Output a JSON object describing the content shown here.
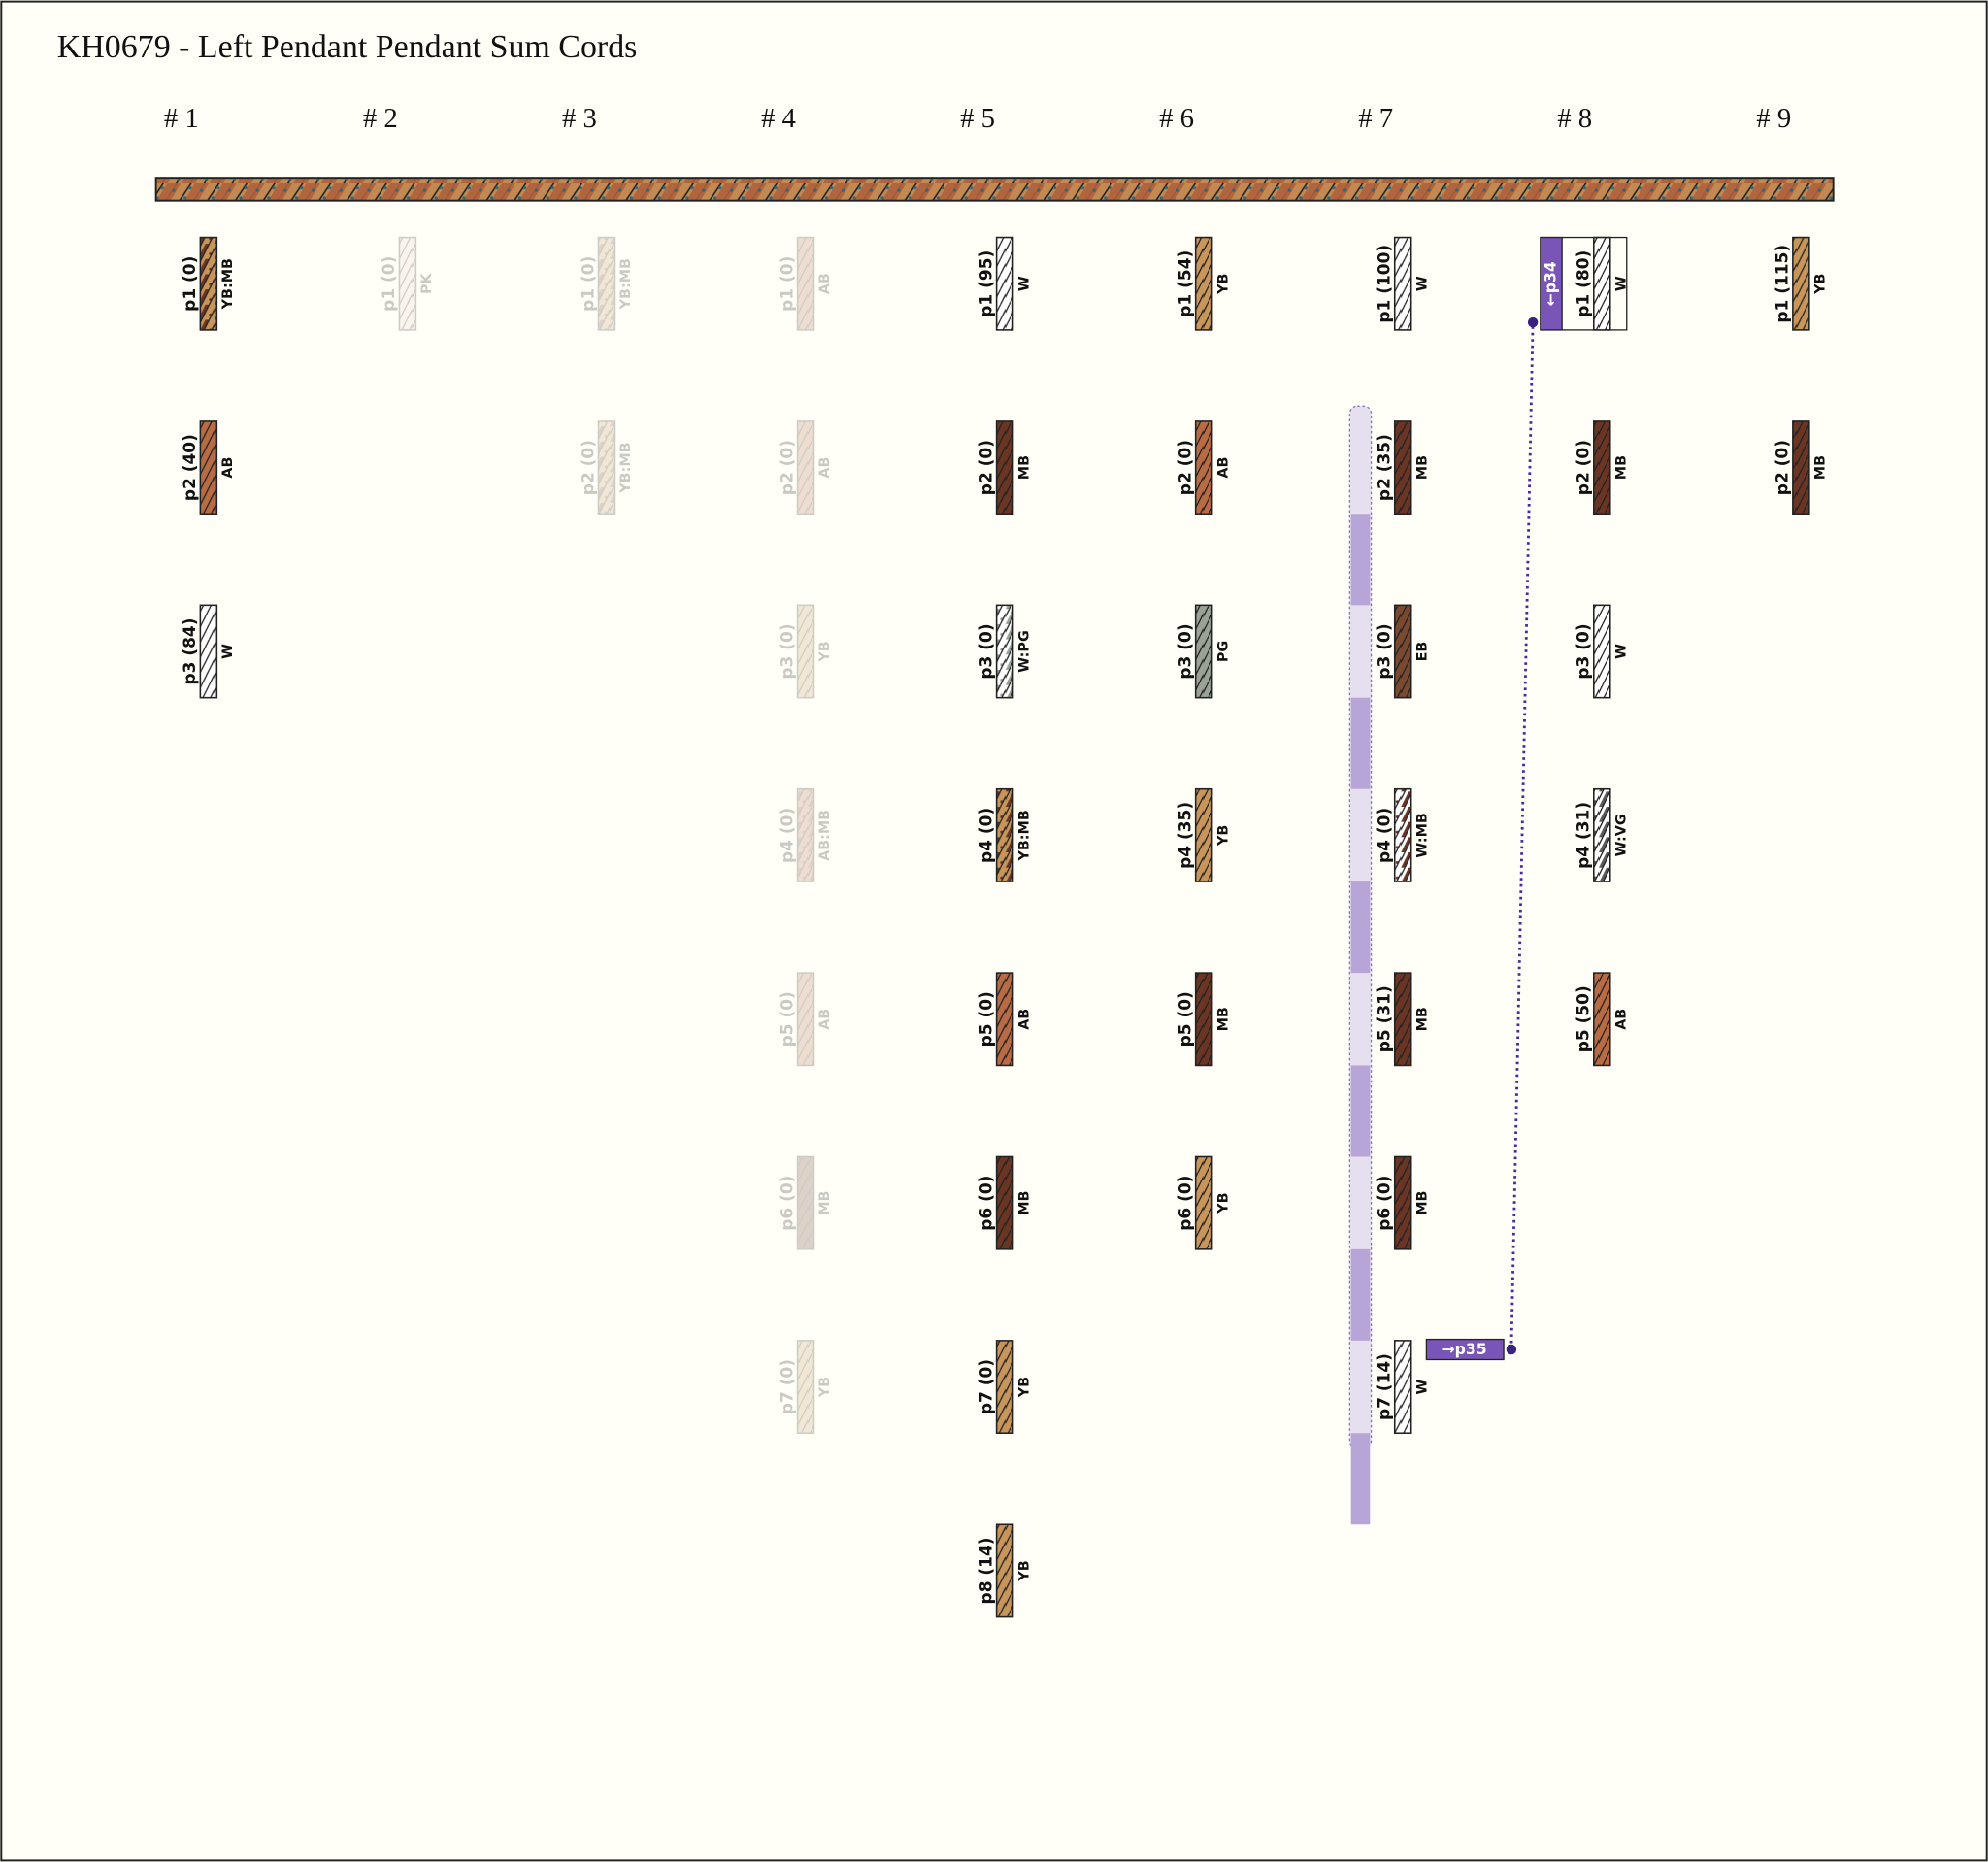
{
  "title": "KH0679 - Left Pendant Pendant Sum Cords",
  "palette": {
    "YB": "#c8955a",
    "MB": "#6b3524",
    "AB": "#b96b44",
    "W": "#ffffff",
    "PG": "#9aa296",
    "EB": "#7a4a30",
    "PK": "#f2cfc4",
    "VG": "#5a5a5a"
  },
  "groups": [
    {
      "label": "# 1",
      "cords": [
        {
          "label": "p1 (0)",
          "color": "YB:MB",
          "faded": false
        },
        {
          "label": "p2 (40)",
          "color": "AB",
          "faded": false
        },
        {
          "label": "p3 (84)",
          "color": "W",
          "faded": false
        }
      ]
    },
    {
      "label": "# 2",
      "cords": [
        {
          "label": "p1 (0)",
          "color": "PK",
          "faded": true
        }
      ]
    },
    {
      "label": "# 3",
      "cords": [
        {
          "label": "p1 (0)",
          "color": "YB:MB",
          "faded": true
        },
        {
          "label": "p2 (0)",
          "color": "YB:MB",
          "faded": true
        }
      ]
    },
    {
      "label": "# 4",
      "cords": [
        {
          "label": "p1 (0)",
          "color": "AB",
          "faded": true
        },
        {
          "label": "p2 (0)",
          "color": "AB",
          "faded": true
        },
        {
          "label": "p3 (0)",
          "color": "YB",
          "faded": true
        },
        {
          "label": "p4 (0)",
          "color": "AB:MB",
          "faded": true
        },
        {
          "label": "p5 (0)",
          "color": "AB",
          "faded": true
        },
        {
          "label": "p6 (0)",
          "color": "MB",
          "faded": true
        },
        {
          "label": "p7 (0)",
          "color": "YB",
          "faded": true
        }
      ]
    },
    {
      "label": "# 5",
      "cords": [
        {
          "label": "p1 (95)",
          "color": "W",
          "faded": false
        },
        {
          "label": "p2 (0)",
          "color": "MB",
          "faded": false
        },
        {
          "label": "p3 (0)",
          "color": "W:PG",
          "faded": false
        },
        {
          "label": "p4 (0)",
          "color": "YB:MB",
          "faded": false
        },
        {
          "label": "p5 (0)",
          "color": "AB",
          "faded": false
        },
        {
          "label": "p6 (0)",
          "color": "MB",
          "faded": false
        },
        {
          "label": "p7 (0)",
          "color": "YB",
          "faded": false
        },
        {
          "label": "p8 (14)",
          "color": "YB",
          "faded": false
        }
      ]
    },
    {
      "label": "# 6",
      "cords": [
        {
          "label": "p1 (54)",
          "color": "YB",
          "faded": false
        },
        {
          "label": "p2 (0)",
          "color": "AB",
          "faded": false
        },
        {
          "label": "p3 (0)",
          "color": "PG",
          "faded": false
        },
        {
          "label": "p4 (35)",
          "color": "YB",
          "faded": false
        },
        {
          "label": "p5 (0)",
          "color": "MB",
          "faded": false
        },
        {
          "label": "p6 (0)",
          "color": "YB",
          "faded": false
        }
      ]
    },
    {
      "label": "# 7",
      "sum_bracket": true,
      "cords": [
        {
          "label": "p1 (100)",
          "color": "W",
          "faded": false
        },
        {
          "label": "p2 (35)",
          "color": "MB",
          "faded": false
        },
        {
          "label": "p3 (0)",
          "color": "EB",
          "faded": false
        },
        {
          "label": "p4 (0)",
          "color": "W:MB",
          "faded": false
        },
        {
          "label": "p5 (31)",
          "color": "MB",
          "faded": false
        },
        {
          "label": "p6 (0)",
          "color": "MB",
          "faded": false
        },
        {
          "label": "p7 (14)",
          "color": "W",
          "faded": false,
          "tag": "→p35"
        }
      ]
    },
    {
      "label": "# 8",
      "cords": [
        {
          "label": "p1 (80)",
          "color": "W",
          "faded": false,
          "tag": "←p34"
        },
        {
          "label": "p2 (0)",
          "color": "MB",
          "faded": false
        },
        {
          "label": "p3 (0)",
          "color": "W",
          "faded": false
        },
        {
          "label": "p4 (31)",
          "color": "W:VG",
          "faded": false
        },
        {
          "label": "p5 (50)",
          "color": "AB",
          "faded": false
        }
      ]
    },
    {
      "label": "# 9",
      "cords": [
        {
          "label": "p1 (115)",
          "color": "YB",
          "faded": false
        },
        {
          "label": "p2 (0)",
          "color": "MB",
          "faded": false
        }
      ]
    }
  ]
}
